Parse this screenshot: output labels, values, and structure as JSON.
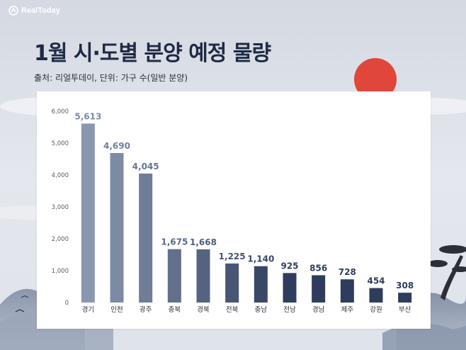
{
  "brand": {
    "name": "RealToday"
  },
  "header": {
    "title": "1월 시·도별 분양 예정 물량",
    "subtitle": "출처: 리얼투데이, 단위: 가구 수(일반 분양)"
  },
  "colors": {
    "bar_top": "#8a97b0",
    "bar_bottom": "#2e3d5e",
    "label_top": "#7d8aa3",
    "label_bottom": "#2e3d5e",
    "sun": "#e1463a",
    "title": "#1f2a44"
  },
  "chart_data": {
    "type": "bar",
    "title": "1월 시·도별 분양 예정 물량",
    "subtitle": "출처: 리얼투데이, 단위: 가구 수(일반 분양)",
    "xlabel": "",
    "ylabel": "",
    "ylim": [
      0,
      6000
    ],
    "yticks": [
      0,
      1000,
      2000,
      3000,
      4000,
      5000,
      6000
    ],
    "ytick_labels": [
      "0",
      "1,000",
      "2,000",
      "3,000",
      "4,000",
      "5,000",
      "6,000"
    ],
    "categories": [
      "경기",
      "인천",
      "광주",
      "충북",
      "경북",
      "전북",
      "충남",
      "전남",
      "경남",
      "제주",
      "강원",
      "부산"
    ],
    "values": [
      5613,
      4690,
      4045,
      1675,
      1668,
      1225,
      1140,
      925,
      856,
      728,
      454,
      308
    ],
    "value_labels": [
      "5,613",
      "4,690",
      "4,045",
      "1,675",
      "1,668",
      "1,225",
      "1,140",
      "925",
      "856",
      "728",
      "454",
      "308"
    ],
    "grid": false,
    "legend": "none"
  }
}
